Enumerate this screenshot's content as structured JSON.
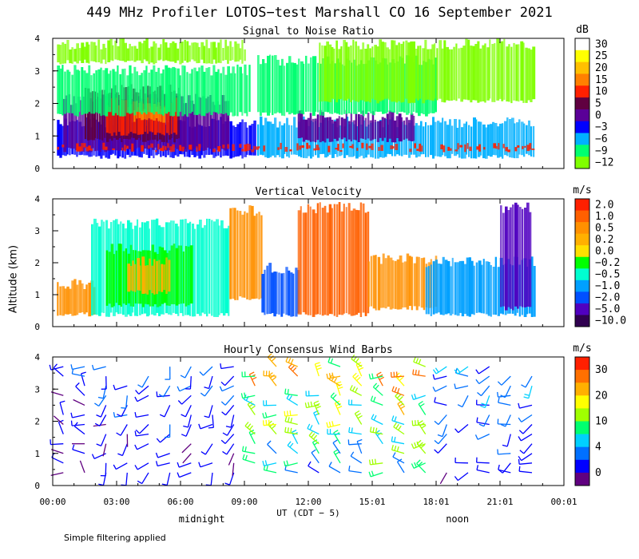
{
  "title": "449 MHz Profiler LOTOS−test Marshall CO 16 September 2021",
  "y_axis_label": "Altitude (km)",
  "footnote": "Simple filtering applied",
  "chart_data": [
    {
      "type": "heatmap",
      "title": "Signal to Noise Ratio",
      "units": "dB",
      "yticks": [
        "0",
        "1",
        "2",
        "3",
        "4"
      ],
      "ylim": [
        0,
        4
      ],
      "colorbar": {
        "labels": [
          "30",
          "25",
          "20",
          "15",
          "10",
          "5",
          "0",
          "−3",
          "−6",
          "−9",
          "−12"
        ],
        "colors": [
          "#ffffff",
          "#ffff00",
          "#ffc000",
          "#ff8000",
          "#ff2000",
          "#600040",
          "#5a0098",
          "#0000ff",
          "#00b0ff",
          "#00ff70",
          "#80ff00"
        ]
      },
      "regions": [
        {
          "t0": 0.2,
          "t1": 9.5,
          "a0": 0.3,
          "a1": 1.6,
          "c": "#0000ff"
        },
        {
          "t0": 0.5,
          "t1": 8.2,
          "a0": 0.5,
          "a1": 2.3,
          "c": "#5a0098"
        },
        {
          "t0": 1.5,
          "t1": 6.0,
          "a0": 0.8,
          "a1": 2.6,
          "c": "#600040"
        },
        {
          "t0": 2.5,
          "t1": 5.8,
          "a0": 1.0,
          "a1": 2.2,
          "c": "#ff2000"
        },
        {
          "t0": 3.8,
          "t1": 5.2,
          "a0": 1.4,
          "a1": 2.1,
          "c": "#ff8000"
        },
        {
          "t0": 0.2,
          "t1": 9.3,
          "a0": 1.6,
          "a1": 3.2,
          "c": "#00ff70"
        },
        {
          "t0": 0.2,
          "t1": 9.0,
          "a0": 3.2,
          "a1": 4.0,
          "c": "#80ff00"
        },
        {
          "t0": 9.6,
          "t1": 22.6,
          "a0": 0.3,
          "a1": 1.6,
          "c": "#00b0ff"
        },
        {
          "t0": 11.5,
          "t1": 17.0,
          "a0": 0.8,
          "a1": 1.8,
          "c": "#5a0098"
        },
        {
          "t0": 9.6,
          "t1": 18.0,
          "a0": 1.6,
          "a1": 3.5,
          "c": "#00ff70"
        },
        {
          "t0": 12.5,
          "t1": 22.6,
          "a0": 2.0,
          "a1": 4.0,
          "c": "#80ff00"
        },
        {
          "t0": 0.2,
          "t1": 22.6,
          "a0": 0.5,
          "a1": 0.8,
          "c": "#ff2000"
        }
      ]
    },
    {
      "type": "heatmap",
      "title": "Vertical Velocity",
      "units": "m/s",
      "yticks": [
        "0",
        "1",
        "2",
        "3",
        "4"
      ],
      "ylim": [
        0,
        4
      ],
      "colorbar": {
        "labels": [
          "2.0",
          "1.0",
          "0.5",
          "0.2",
          "0.0",
          "−0.2",
          "−0.5",
          "−1.0",
          "−2.0",
          "−5.0",
          "−10.0"
        ],
        "colors": [
          "#ff2000",
          "#ff6000",
          "#ff9000",
          "#ffb000",
          "#ffe000",
          "#00ff00",
          "#00ffd0",
          "#00a0ff",
          "#0050ff",
          "#5000c0",
          "#300050"
        ]
      },
      "regions": [
        {
          "t0": 0.2,
          "t1": 2.0,
          "a0": 0.3,
          "a1": 1.5,
          "c": "#ff9000"
        },
        {
          "t0": 1.8,
          "t1": 8.3,
          "a0": 0.3,
          "a1": 3.4,
          "c": "#00ffd0"
        },
        {
          "t0": 2.5,
          "t1": 6.5,
          "a0": 0.6,
          "a1": 2.6,
          "c": "#00ff00"
        },
        {
          "t0": 3.5,
          "t1": 5.5,
          "a0": 1.0,
          "a1": 2.2,
          "c": "#ffb000"
        },
        {
          "t0": 8.3,
          "t1": 9.8,
          "a0": 0.8,
          "a1": 3.8,
          "c": "#ff9000"
        },
        {
          "t0": 9.8,
          "t1": 11.5,
          "a0": 0.3,
          "a1": 2.0,
          "c": "#0050ff"
        },
        {
          "t0": 11.5,
          "t1": 14.8,
          "a0": 0.3,
          "a1": 3.9,
          "c": "#ff6000"
        },
        {
          "t0": 14.8,
          "t1": 18.0,
          "a0": 0.5,
          "a1": 2.3,
          "c": "#ff9000"
        },
        {
          "t0": 17.5,
          "t1": 22.6,
          "a0": 0.3,
          "a1": 2.2,
          "c": "#00a0ff"
        },
        {
          "t0": 21.0,
          "t1": 22.4,
          "a0": 0.5,
          "a1": 3.9,
          "c": "#5000c0"
        }
      ]
    },
    {
      "type": "scatter",
      "subtype": "wind-barbs",
      "title": "Hourly Consensus Wind Barbs",
      "units": "m/s",
      "yticks": [
        "0",
        "1",
        "2",
        "3",
        "4"
      ],
      "ylim": [
        0,
        4
      ],
      "colorbar": {
        "labels": [
          "30",
          "20",
          "10",
          "4",
          "0"
        ],
        "colors": [
          "#ff2000",
          "#ff7000",
          "#ffb000",
          "#ffff00",
          "#a0ff00",
          "#00ff70",
          "#00d0ff",
          "#0070ff",
          "#0000ff",
          "#600080"
        ]
      },
      "speed_color_stops": [
        0,
        4,
        10,
        20,
        30
      ],
      "barb_hours": [
        0,
        1,
        2,
        3,
        4,
        5,
        6,
        7,
        8,
        9,
        10,
        11,
        12,
        13,
        14,
        15,
        16,
        17,
        18,
        19,
        20,
        21,
        22
      ],
      "barb_altitudes": [
        0.4,
        0.7,
        1.0,
        1.3,
        1.6,
        1.9,
        2.2,
        2.5,
        2.8,
        3.1,
        3.4,
        3.7
      ],
      "profiles": [
        {
          "t0": 0,
          "t1": 2,
          "speed": 3,
          "dir": 300
        },
        {
          "t0": 2,
          "t1": 9,
          "speed": 4,
          "dir": 220
        },
        {
          "t0": 9,
          "t1": 15,
          "speed": 12,
          "dir": 300
        },
        {
          "t0": 15,
          "t1": 18,
          "speed": 14,
          "dir": 290
        },
        {
          "t0": 18,
          "t1": 23,
          "speed": 5,
          "dir": 240
        }
      ]
    }
  ],
  "x_axis": {
    "range_hours": [
      0,
      24
    ],
    "tick_hours": [
      0,
      3,
      6,
      9,
      12,
      15,
      18,
      21,
      24
    ],
    "tick_labels": [
      "00:00",
      "03:00",
      "06:00",
      "09:00",
      "12:00",
      "15:01",
      "18:01",
      "21:01",
      "00:01"
    ],
    "label": "UT  (CDT − 5)",
    "annotations": [
      {
        "text": "midnight",
        "hour": 7.0
      },
      {
        "text": "noon",
        "hour": 19.0
      }
    ]
  }
}
